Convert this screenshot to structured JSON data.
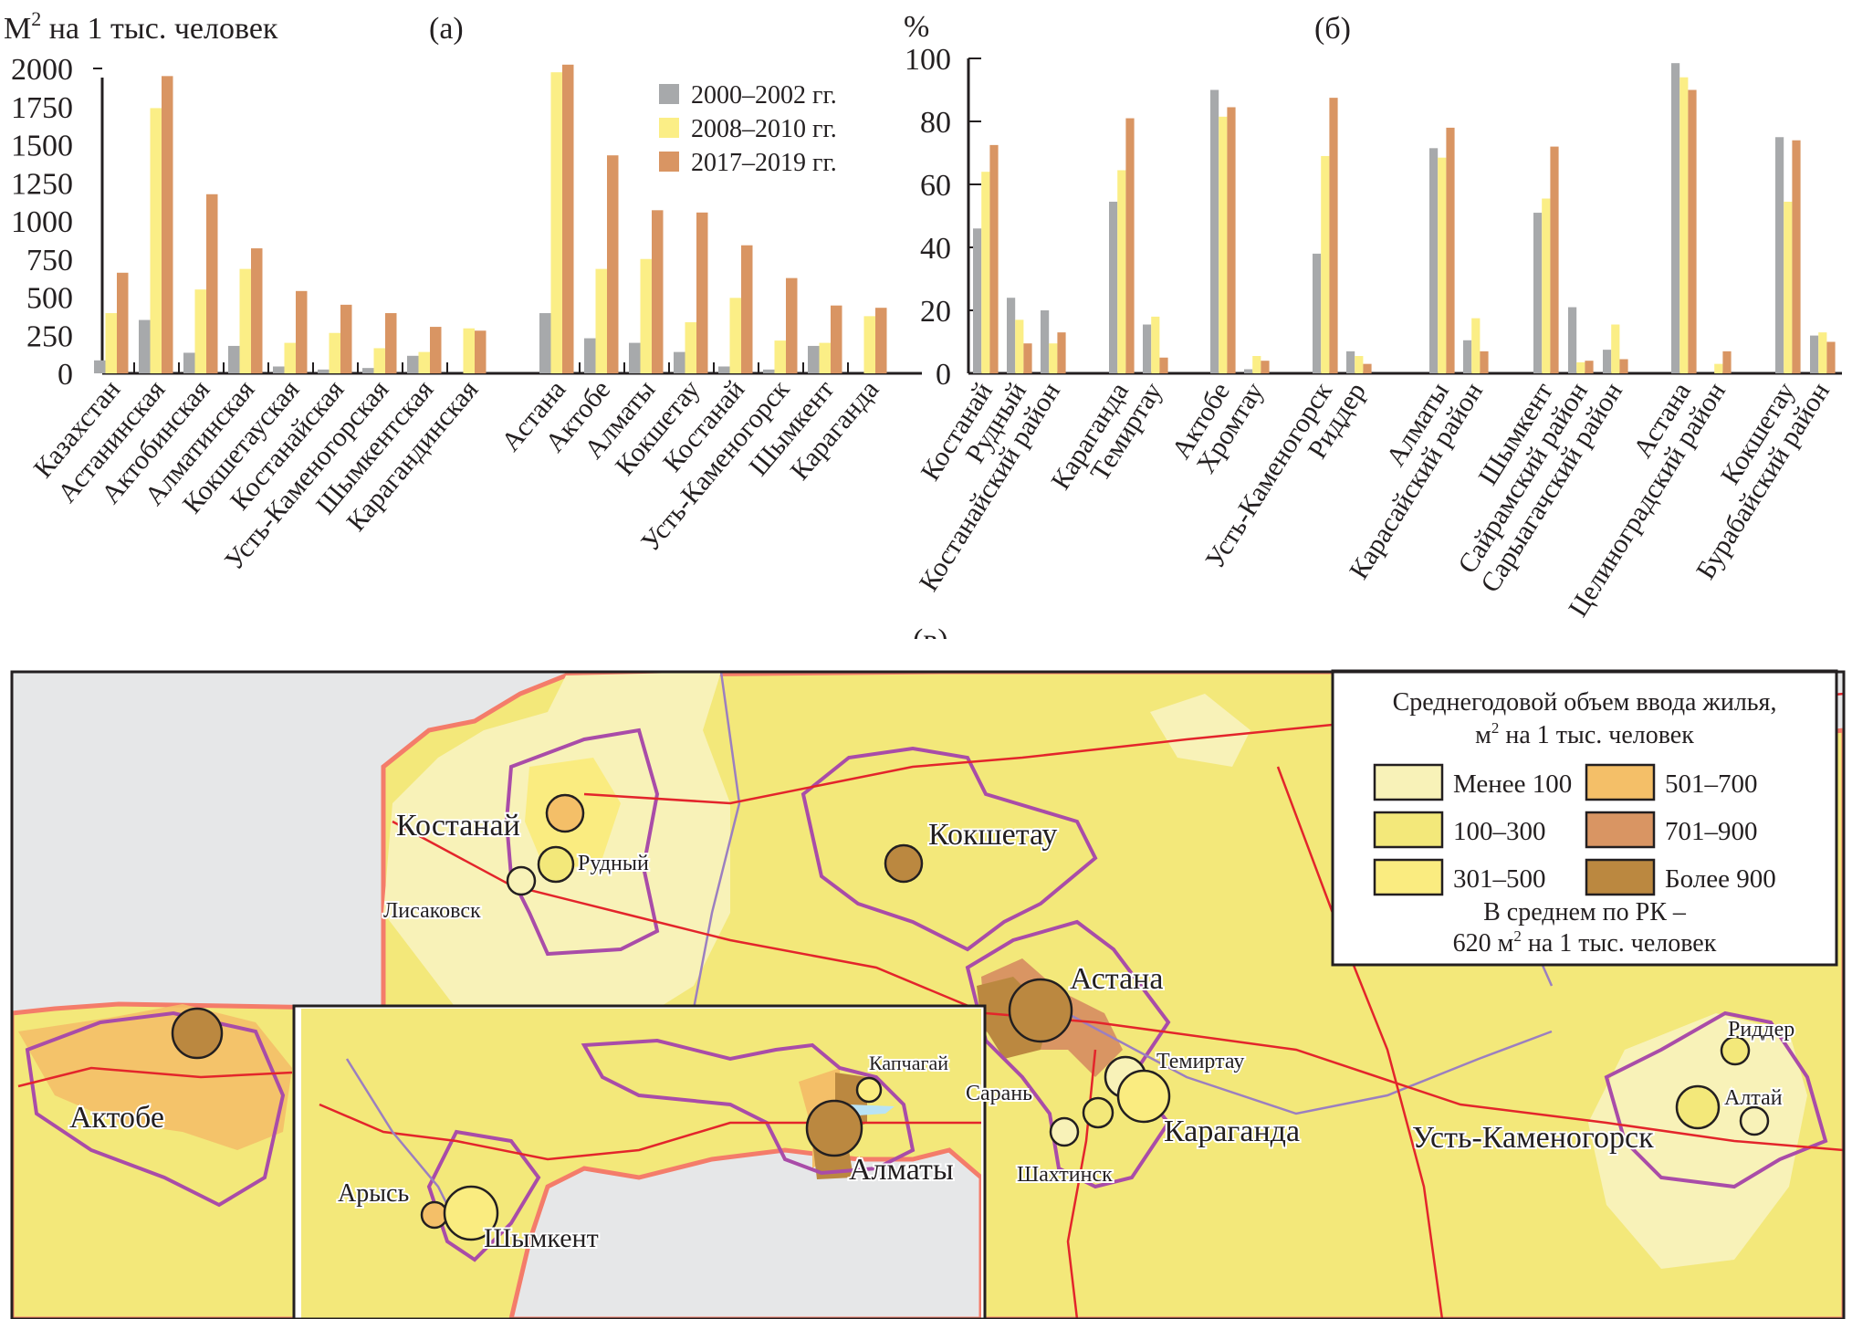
{
  "colors": {
    "period_2000_2002": "#a7a9ab",
    "period_2008_2010": "#fbee86",
    "period_2017_2019": "#d99563",
    "axis": "#231f20"
  },
  "chart_data": [
    {
      "id": "a",
      "type": "bar",
      "panel_label": "(а)",
      "ylabel": "М² на 1 тыс. человек",
      "ylabel_main": "М",
      "ylabel_sup": "2",
      "ylabel_rest": " на 1 тыс. человек",
      "xlabel": "",
      "ylim": [
        0,
        2000
      ],
      "yticks": [
        "0",
        "250",
        "500",
        "750",
        "1000",
        "1250",
        "1500",
        "1750",
        "2000"
      ],
      "ytick_values": [
        0,
        250,
        500,
        750,
        1000,
        1250,
        1500,
        1750,
        2000
      ],
      "legend_position": "top-right",
      "legend": [
        "2000–2002 гг.",
        "2008–2010 гг.",
        "2017–2019 гг."
      ],
      "groups": [
        {
          "name": "regions",
          "categories": [
            "Казахстан",
            "Астанинская",
            "Актобинская",
            "Алматинская",
            "Кокшетауская",
            "Костанайская",
            "Усть-Каменогорская",
            "Шымкентская",
            "Карагандинская"
          ]
        },
        {
          "name": "cities",
          "categories": [
            "Астана",
            "Актобе",
            "Алматы",
            "Кокшетау",
            "Костанай",
            "Усть-Каменогорск",
            "Шымкент",
            "Караганда"
          ]
        }
      ],
      "categories": [
        "Казахстан",
        "Астанинская",
        "Актобинская",
        "Алматинская",
        "Кокшетауская",
        "Костанайская",
        "Усть-Каменогорская",
        "Шымкентская",
        "Карагандинская",
        "Астана",
        "Актобе",
        "Алматы",
        "Кокшетау",
        "Костанай",
        "Усть-Каменогорск",
        "Шымкент",
        "Караганда"
      ],
      "series": [
        {
          "name": "2000–2002 гг.",
          "values": [
            85,
            350,
            135,
            180,
            45,
            25,
            35,
            115,
            0,
            395,
            230,
            200,
            140,
            45,
            25,
            180,
            0
          ]
        },
        {
          "name": "2008–2010 гг.",
          "values": [
            395,
            1740,
            550,
            685,
            200,
            265,
            165,
            140,
            295,
            1975,
            685,
            750,
            335,
            495,
            215,
            200,
            375
          ]
        },
        {
          "name": "2017–2019 гг.",
          "values": [
            660,
            1950,
            1175,
            820,
            540,
            450,
            395,
            305,
            280,
            2025,
            1430,
            1070,
            1055,
            840,
            625,
            445,
            430
          ]
        }
      ]
    },
    {
      "id": "b",
      "type": "bar",
      "panel_label": "(б)",
      "ylabel": "%",
      "xlabel": "",
      "ylim": [
        0,
        100
      ],
      "yticks": [
        "0",
        "20",
        "40",
        "60",
        "80",
        "100"
      ],
      "ytick_values": [
        0,
        20,
        40,
        60,
        80,
        100
      ],
      "categories": [
        "Костанай",
        "Рудный",
        "Костанайский район",
        "Караганда",
        "Темиртау",
        "Актобе",
        "Хромтау",
        "Усть-Каменогорск",
        "Риддер",
        "Алматы",
        "Карасайский район",
        "Шымкент",
        "Сайрамский район",
        "Сарыагачский район",
        "Астана",
        "Целиноградский район",
        "Кокшетау",
        "Бурабайский район"
      ],
      "group_sizes": [
        3,
        2,
        2,
        2,
        2,
        3,
        2,
        2
      ],
      "series": [
        {
          "name": "2000–2002 гг.",
          "values": [
            46,
            24,
            20,
            54.5,
            15.5,
            90,
            1.3,
            38,
            7,
            71.5,
            10.5,
            51,
            21,
            7.5,
            98.5,
            0,
            75,
            12
          ]
        },
        {
          "name": "2008–2010 гг.",
          "values": [
            64,
            17,
            9.5,
            64.5,
            18,
            81.5,
            5.5,
            69,
            5.5,
            68.5,
            17.5,
            55.5,
            3.5,
            15.5,
            94,
            3,
            54.5,
            13
          ]
        },
        {
          "name": "2017–2019 гг.",
          "values": [
            72.5,
            9.5,
            13,
            81,
            5,
            84.5,
            4,
            87.5,
            3,
            78,
            7,
            72,
            4,
            4.5,
            90,
            7,
            74,
            10
          ]
        }
      ]
    }
  ],
  "map": {
    "panel_label": "(в)",
    "legend": {
      "title_line1": "Среднегодовой объем ввода жилья,",
      "title_line2_pre": "м",
      "title_line2_sup": "2",
      "title_line2_post": " на 1 тыс. человек",
      "classes": [
        {
          "label": "Менее 100",
          "color": "#f8f2b8"
        },
        {
          "label": "100–300",
          "color": "#f3e87a"
        },
        {
          "label": "301–500",
          "color": "#faec80"
        },
        {
          "label": "501–700",
          "color": "#f4bf68"
        },
        {
          "label": "701–900",
          "color": "#d99563"
        },
        {
          "label": "Более 900",
          "color": "#bb8840"
        }
      ],
      "note_line1": "В среднем по РК –",
      "note_line2_pre": "620  м",
      "note_line2_sup": "2",
      "note_line2_post": " на 1 тыс. человек"
    },
    "cities": [
      {
        "name": "Костанай",
        "class": "501–700"
      },
      {
        "name": "Рудный",
        "class": "301–500"
      },
      {
        "name": "Лисаковск",
        "class": "Менее 100"
      },
      {
        "name": "Кокшетау",
        "class": "Более 900"
      },
      {
        "name": "Астана",
        "class": "Более 900"
      },
      {
        "name": "Темиртау",
        "class": "Менее 100"
      },
      {
        "name": "Сарань",
        "class": "100–300"
      },
      {
        "name": "Караганда",
        "class": "301–500"
      },
      {
        "name": "Шахтинск",
        "class": "Менее 100"
      },
      {
        "name": "Усть-Каменогорск",
        "class": "100–300"
      },
      {
        "name": "Риддер",
        "class": "100–300"
      },
      {
        "name": "Алтай",
        "class": "Менее 100"
      },
      {
        "name": "Актобе",
        "class": "Более 900"
      },
      {
        "name": "Капчагай",
        "class": "301–500"
      },
      {
        "name": "Алматы",
        "class": "Более 900"
      },
      {
        "name": "Арысь",
        "class": "501–700"
      },
      {
        "name": "Шымкент",
        "class": "301–500"
      }
    ]
  }
}
